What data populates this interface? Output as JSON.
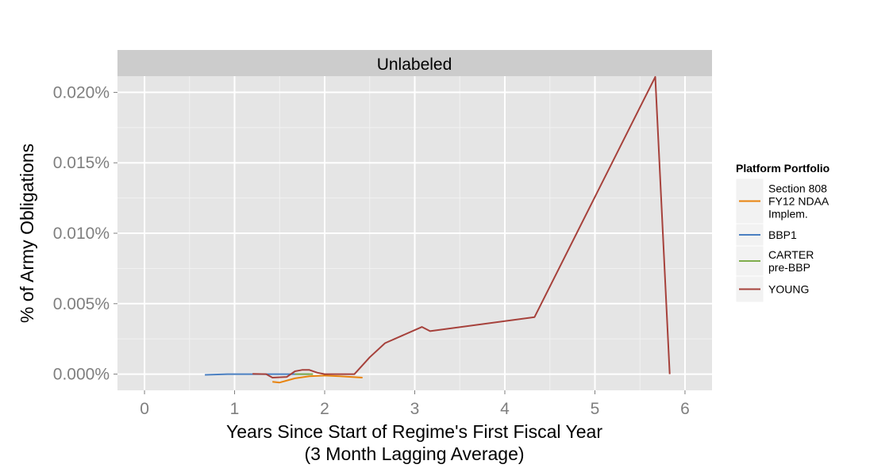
{
  "chart_data": {
    "type": "line",
    "facet_label": "Unlabeled",
    "xlabel": "Years Since Start of Regime's First Fiscal Year\n(3 Month Lagging Average)",
    "ylabel": "% of Army Obligations",
    "xlim": [
      -0.3,
      6.3
    ],
    "ylim": [
      -0.00115,
      0.02115
    ],
    "x_ticks": [
      0,
      1,
      2,
      3,
      4,
      5,
      6
    ],
    "x_tick_labels": [
      "0",
      "1",
      "2",
      "3",
      "4",
      "5",
      "6"
    ],
    "y_ticks": [
      0.0,
      0.005,
      0.01,
      0.015,
      0.02
    ],
    "y_tick_labels": [
      "0.000%",
      "0.005%",
      "0.010%",
      "0.015%",
      "0.020%"
    ],
    "grid": true,
    "legend_title": "Platform Portfolio",
    "legend_position": "right",
    "series": [
      {
        "name": "Section 808\nFY12 NDAA\nImplem.",
        "color": "#e8830c",
        "points": [
          [
            1.42,
            -0.00055
          ],
          [
            1.5,
            -0.0006
          ],
          [
            1.67,
            -0.0003
          ],
          [
            1.83,
            -0.00015
          ],
          [
            2.0,
            -0.0001
          ],
          [
            2.17,
            -0.00015
          ],
          [
            2.42,
            -0.00025
          ]
        ]
      },
      {
        "name": "BBP1",
        "color": "#4a7fc1",
        "points": [
          [
            0.67,
            -5e-05
          ],
          [
            0.92,
            0.0
          ],
          [
            1.17,
            0.0
          ],
          [
            1.42,
            0.0
          ],
          [
            1.67,
            0.0
          ],
          [
            1.83,
            0.0
          ]
        ]
      },
      {
        "name": "CARTER\npre-BBP",
        "color": "#7fad4c",
        "points": [
          [
            1.67,
            0.0
          ],
          [
            1.73,
            0.0
          ],
          [
            1.8,
            0.0
          ],
          [
            1.87,
            0.0
          ]
        ]
      },
      {
        "name": "YOUNG",
        "color": "#a6413b",
        "points": [
          [
            1.2,
            2e-05
          ],
          [
            1.35,
            0.0
          ],
          [
            1.42,
            -0.00025
          ],
          [
            1.58,
            -0.0002
          ],
          [
            1.67,
            0.0002
          ],
          [
            1.75,
            0.0003
          ],
          [
            1.83,
            0.0003
          ],
          [
            1.92,
            0.0001
          ],
          [
            2.0,
            0.0
          ],
          [
            2.33,
            0.0
          ],
          [
            2.5,
            0.0012
          ],
          [
            2.67,
            0.0022
          ],
          [
            3.08,
            0.00335
          ],
          [
            3.17,
            0.00305
          ],
          [
            4.33,
            0.00405
          ],
          [
            5.67,
            0.0211
          ],
          [
            5.83,
            0.0
          ]
        ]
      }
    ]
  }
}
